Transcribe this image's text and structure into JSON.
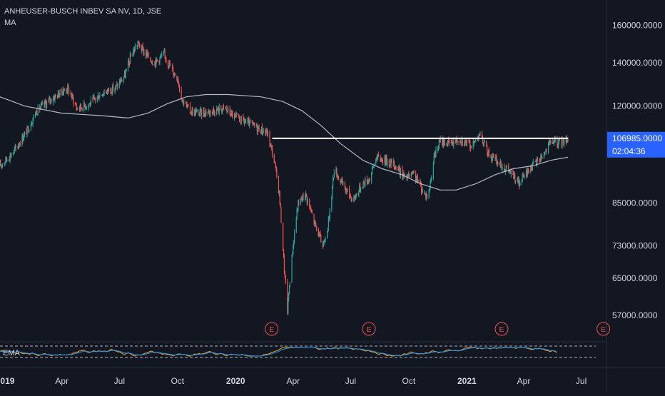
{
  "legend": {
    "symbol_line": "ANHEUSER-BUSCH INBEV SA NV, 1D, JSE",
    "indicator": "MA"
  },
  "sub_pane": {
    "label": "EMA"
  },
  "price_axis": {
    "ticks": [
      "160000.0000",
      "140000.0000",
      "120000.0000",
      "106985.0000",
      "85000.0000",
      "73000.0000",
      "65000.0000",
      "57000.0000"
    ],
    "current_price": "106985.0000",
    "countdown": "02:04:36"
  },
  "time_axis": {
    "ticks": [
      "2019",
      "Apr",
      "Jul",
      "Oct",
      "2020",
      "Apr",
      "Jul",
      "Oct",
      "2021",
      "Apr",
      "Jul"
    ]
  },
  "earnings_markers": [
    "E",
    "E",
    "E",
    "E"
  ],
  "colors": {
    "background": "#131722",
    "up": "#26a69a",
    "down": "#ef5350",
    "moving_average": "#d1d4dc",
    "resistance_line": "#ffffff",
    "price_label_bg": "#2962ff",
    "ema_fast": "#f7a21b",
    "ema_slow": "#2196f3"
  },
  "chart_data": {
    "type": "candlestick",
    "title": "ANHEUSER-BUSCH INBEV SA NV, 1D, JSE",
    "y_scale": "log",
    "ylim": [
      52000,
      175000
    ],
    "x_range": [
      "2018-12-24",
      "2021-08-10"
    ],
    "price_keypoints": [
      [
        "2018-12-24",
        97000
      ],
      [
        "2019-01-15",
        102000
      ],
      [
        "2019-02-05",
        110000
      ],
      [
        "2019-02-20",
        118000
      ],
      [
        "2019-03-15",
        123000
      ],
      [
        "2019-04-10",
        128000
      ],
      [
        "2019-04-25",
        119000
      ],
      [
        "2019-05-15",
        121000
      ],
      [
        "2019-06-05",
        126000
      ],
      [
        "2019-06-25",
        128000
      ],
      [
        "2019-07-10",
        134000
      ],
      [
        "2019-07-20",
        144000
      ],
      [
        "2019-07-30",
        150000
      ],
      [
        "2019-08-10",
        145000
      ],
      [
        "2019-08-25",
        140000
      ],
      [
        "2019-09-10",
        144000
      ],
      [
        "2019-09-25",
        135000
      ],
      [
        "2019-10-01",
        133000
      ],
      [
        "2019-10-08",
        123000
      ],
      [
        "2019-10-20",
        118000
      ],
      [
        "2019-11-05",
        117000
      ],
      [
        "2019-11-25",
        118000
      ],
      [
        "2019-12-15",
        119000
      ],
      [
        "2020-01-01",
        115000
      ],
      [
        "2020-01-20",
        113000
      ],
      [
        "2020-02-05",
        111000
      ],
      [
        "2020-02-20",
        109000
      ],
      [
        "2020-03-01",
        100000
      ],
      [
        "2020-03-10",
        88000
      ],
      [
        "2020-03-18",
        67000
      ],
      [
        "2020-03-23",
        58000
      ],
      [
        "2020-03-30",
        70000
      ],
      [
        "2020-04-08",
        84000
      ],
      [
        "2020-04-20",
        88000
      ],
      [
        "2020-05-05",
        79000
      ],
      [
        "2020-05-18",
        73000
      ],
      [
        "2020-05-28",
        80000
      ],
      [
        "2020-06-05",
        96000
      ],
      [
        "2020-06-20",
        90000
      ],
      [
        "2020-07-05",
        86000
      ],
      [
        "2020-07-20",
        91000
      ],
      [
        "2020-08-01",
        93000
      ],
      [
        "2020-08-10",
        100000
      ],
      [
        "2020-08-25",
        99000
      ],
      [
        "2020-09-10",
        97000
      ],
      [
        "2020-09-25",
        93000
      ],
      [
        "2020-10-10",
        94000
      ],
      [
        "2020-10-25",
        88000
      ],
      [
        "2020-11-01",
        87000
      ],
      [
        "2020-11-10",
        100000
      ],
      [
        "2020-11-20",
        106000
      ],
      [
        "2020-12-05",
        105000
      ],
      [
        "2020-12-20",
        107000
      ],
      [
        "2021-01-10",
        104000
      ],
      [
        "2021-01-20",
        109000
      ],
      [
        "2021-02-05",
        101000
      ],
      [
        "2021-02-25",
        97000
      ],
      [
        "2021-03-10",
        95000
      ],
      [
        "2021-03-25",
        91000
      ],
      [
        "2021-04-10",
        96000
      ],
      [
        "2021-04-20",
        98000
      ],
      [
        "2021-05-05",
        102000
      ],
      [
        "2021-05-15",
        106000
      ],
      [
        "2021-05-25",
        105000
      ],
      [
        "2021-06-10",
        106985
      ]
    ],
    "moving_average": [
      [
        "2018-12-24",
        124000
      ],
      [
        "2019-02-01",
        120000
      ],
      [
        "2019-04-01",
        117000
      ],
      [
        "2019-06-01",
        116000
      ],
      [
        "2019-07-15",
        115000
      ],
      [
        "2019-08-15",
        117000
      ],
      [
        "2019-09-15",
        121000
      ],
      [
        "2019-10-15",
        124000
      ],
      [
        "2019-11-15",
        125000
      ],
      [
        "2019-12-20",
        125000
      ],
      [
        "2020-02-10",
        124000
      ],
      [
        "2020-03-15",
        122000
      ],
      [
        "2020-04-15",
        118000
      ],
      [
        "2020-05-15",
        112000
      ],
      [
        "2020-06-15",
        105000
      ],
      [
        "2020-07-20",
        99000
      ],
      [
        "2020-08-20",
        96000
      ],
      [
        "2020-09-20",
        94000
      ],
      [
        "2020-10-20",
        91000
      ],
      [
        "2020-11-20",
        89000
      ],
      [
        "2020-12-15",
        89000
      ],
      [
        "2021-01-15",
        91000
      ],
      [
        "2021-02-15",
        94000
      ],
      [
        "2021-03-15",
        96000
      ],
      [
        "2021-04-15",
        97000
      ],
      [
        "2021-05-15",
        99000
      ],
      [
        "2021-06-10",
        100000
      ]
    ],
    "horizontal_line": {
      "price": 106985,
      "from": "2020-02-28",
      "to": "2021-06-10"
    },
    "earnings_dates": [
      "2020-02-27",
      "2020-07-30",
      "2021-02-25",
      "2021-08-05"
    ],
    "axis_labels": {
      "x": "",
      "y": ""
    }
  }
}
